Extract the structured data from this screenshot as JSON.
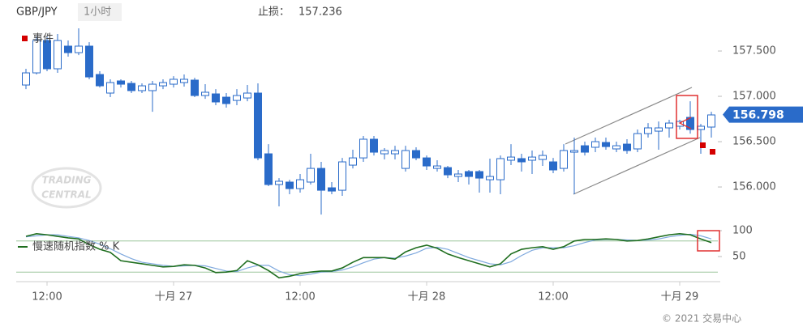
{
  "chart_data": [
    {
      "type": "candlestick",
      "title": "GBP/JPY",
      "subtitle": "1小时",
      "stop_loss_label": "止损：",
      "stop_loss": 157.236,
      "event_legend": "事件",
      "event_color": "#d40000",
      "watermark": [
        "TRADING",
        "CENTRAL"
      ],
      "up_color": "#ffffff",
      "down_color": "#2a6bc9",
      "edge_color": "#2a6bc9",
      "categories": [
        null,
        null,
        "12:00",
        null,
        null,
        null,
        null,
        null,
        null,
        null,
        null,
        null,
        null,
        null,
        "十月 27",
        null,
        null,
        null,
        null,
        null,
        null,
        null,
        null,
        null,
        null,
        null,
        "12:00",
        null,
        null,
        null,
        null,
        null,
        null,
        null,
        null,
        null,
        null,
        null,
        "十月 28",
        null,
        null,
        null,
        null,
        null,
        null,
        null,
        null,
        null,
        null,
        null,
        "12:00",
        null,
        null,
        null,
        null,
        null,
        null,
        null,
        null,
        null,
        null,
        null,
        "十月 29",
        null,
        null,
        null
      ],
      "open": [
        157.125,
        157.259,
        157.616,
        157.304,
        157.554,
        157.482,
        157.554,
        157.241,
        157.036,
        157.17,
        157.143,
        157.063,
        157.063,
        157.116,
        157.134,
        157.152,
        157.179,
        157.009,
        157.027,
        156.991,
        156.955,
        156.982,
        157.036,
        156.366,
        156.027,
        156.054,
        155.982,
        156.054,
        156.205,
        155.991,
        155.964,
        156.241,
        156.321,
        156.527,
        156.366,
        156.366,
        156.205,
        156.402,
        156.321,
        156.205,
        156.214,
        156.116,
        156.17,
        156.17,
        156.08,
        156.08,
        156.295,
        156.313,
        156.295,
        156.304,
        156.277,
        156.205,
        156.384,
        156.455,
        156.438,
        156.491,
        156.42,
        156.473,
        156.42,
        156.589,
        156.616,
        156.652,
        156.67,
        156.768,
        156.634,
        156.661
      ],
      "high": [
        157.304,
        157.661,
        157.661,
        157.688,
        157.616,
        157.75,
        157.598,
        157.277,
        157.188,
        157.188,
        157.17,
        157.143,
        157.17,
        157.188,
        157.223,
        157.241,
        157.205,
        157.134,
        157.08,
        157.036,
        157.08,
        157.125,
        157.143,
        156.473,
        156.098,
        156.08,
        156.143,
        156.366,
        156.277,
        156.054,
        156.321,
        156.411,
        156.563,
        156.563,
        156.429,
        156.455,
        156.455,
        156.438,
        156.348,
        156.295,
        156.232,
        156.188,
        156.188,
        156.188,
        156.313,
        156.348,
        156.473,
        156.366,
        156.402,
        156.402,
        156.321,
        156.473,
        156.545,
        156.5,
        156.545,
        156.545,
        156.5,
        156.527,
        156.634,
        156.705,
        156.723,
        156.741,
        156.741,
        156.946,
        156.696,
        156.83
      ],
      "low": [
        157.08,
        157.241,
        157.277,
        157.259,
        157.438,
        157.455,
        157.188,
        157.098,
        156.991,
        157.098,
        157.036,
        157.036,
        156.83,
        157.08,
        157.098,
        157.107,
        156.991,
        156.973,
        156.902,
        156.875,
        156.902,
        156.946,
        156.295,
        156.009,
        155.786,
        155.92,
        155.938,
        156.027,
        155.696,
        155.92,
        155.902,
        156.205,
        156.277,
        156.348,
        156.304,
        156.304,
        156.17,
        156.295,
        156.188,
        156.17,
        156.098,
        156.054,
        156.027,
        155.938,
        155.938,
        155.92,
        156.241,
        156.17,
        156.143,
        156.232,
        156.152,
        156.17,
        155.92,
        156.348,
        156.384,
        156.411,
        156.384,
        156.366,
        156.384,
        156.545,
        156.411,
        156.545,
        156.634,
        156.589,
        156.366,
        156.545
      ],
      "close": [
        157.259,
        157.616,
        157.304,
        157.616,
        157.482,
        157.554,
        157.214,
        157.116,
        157.152,
        157.134,
        157.063,
        157.116,
        157.134,
        157.152,
        157.188,
        157.188,
        157.009,
        157.045,
        156.938,
        156.92,
        157.009,
        157.036,
        156.321,
        156.027,
        156.063,
        155.982,
        156.08,
        156.205,
        155.964,
        155.955,
        156.277,
        156.321,
        156.527,
        156.384,
        156.402,
        156.402,
        156.402,
        156.321,
        156.232,
        156.232,
        156.134,
        156.143,
        156.116,
        156.098,
        156.116,
        156.313,
        156.33,
        156.277,
        156.33,
        156.348,
        156.188,
        156.402,
        156.402,
        156.384,
        156.5,
        156.446,
        156.455,
        156.402,
        156.589,
        156.652,
        156.652,
        156.705,
        156.723,
        156.634,
        156.67,
        156.795
      ],
      "last_price": 156.798,
      "last_price_color": "#2a6bc9",
      "ylim": [
        155.67,
        157.795
      ],
      "yticks": [
        {
          "value": 156,
          "label": "156.000"
        },
        {
          "value": 156.5,
          "label": "156.500"
        },
        {
          "value": 157,
          "label": "157.000"
        },
        {
          "value": 157.5,
          "label": "157.500"
        }
      ]
    },
    {
      "type": "line",
      "series": [
        {
          "name": "慢速随机指数 % K",
          "color": "#1f6e1f",
          "values": [
            89,
            94,
            92,
            89,
            86,
            84,
            73,
            64,
            58,
            42,
            39,
            36,
            33,
            30,
            31,
            34,
            33,
            28,
            19,
            20,
            23,
            42,
            34,
            23,
            9,
            12,
            17,
            20,
            22,
            22,
            28,
            39,
            48,
            48,
            48,
            45,
            59,
            67,
            72,
            66,
            55,
            48,
            42,
            36,
            30,
            36,
            55,
            64,
            67,
            69,
            64,
            69,
            80,
            83,
            83,
            84,
            83,
            80,
            81,
            84,
            88,
            92,
            94,
            92,
            84,
            77
          ]
        },
        {
          "color": "#7fa9de",
          "values": [
            88,
            90,
            92,
            92,
            89,
            86,
            81,
            74,
            65,
            55,
            46,
            39,
            36,
            33,
            31,
            32,
            33,
            32,
            27,
            22,
            21,
            28,
            33,
            33,
            22,
            15,
            13,
            16,
            20,
            21,
            24,
            30,
            38,
            45,
            48,
            47,
            51,
            57,
            66,
            68,
            64,
            56,
            48,
            42,
            36,
            34,
            40,
            52,
            62,
            67,
            67,
            67,
            71,
            77,
            82,
            83,
            83,
            82,
            81,
            82,
            84,
            88,
            91,
            93,
            90,
            84
          ]
        }
      ],
      "levels": [
        80,
        20
      ],
      "level_color": "#9bc59b",
      "ylim": [
        6.25,
        120.3
      ],
      "yticks": [
        50,
        100
      ]
    }
  ],
  "footer": "© 2021 交易中心"
}
